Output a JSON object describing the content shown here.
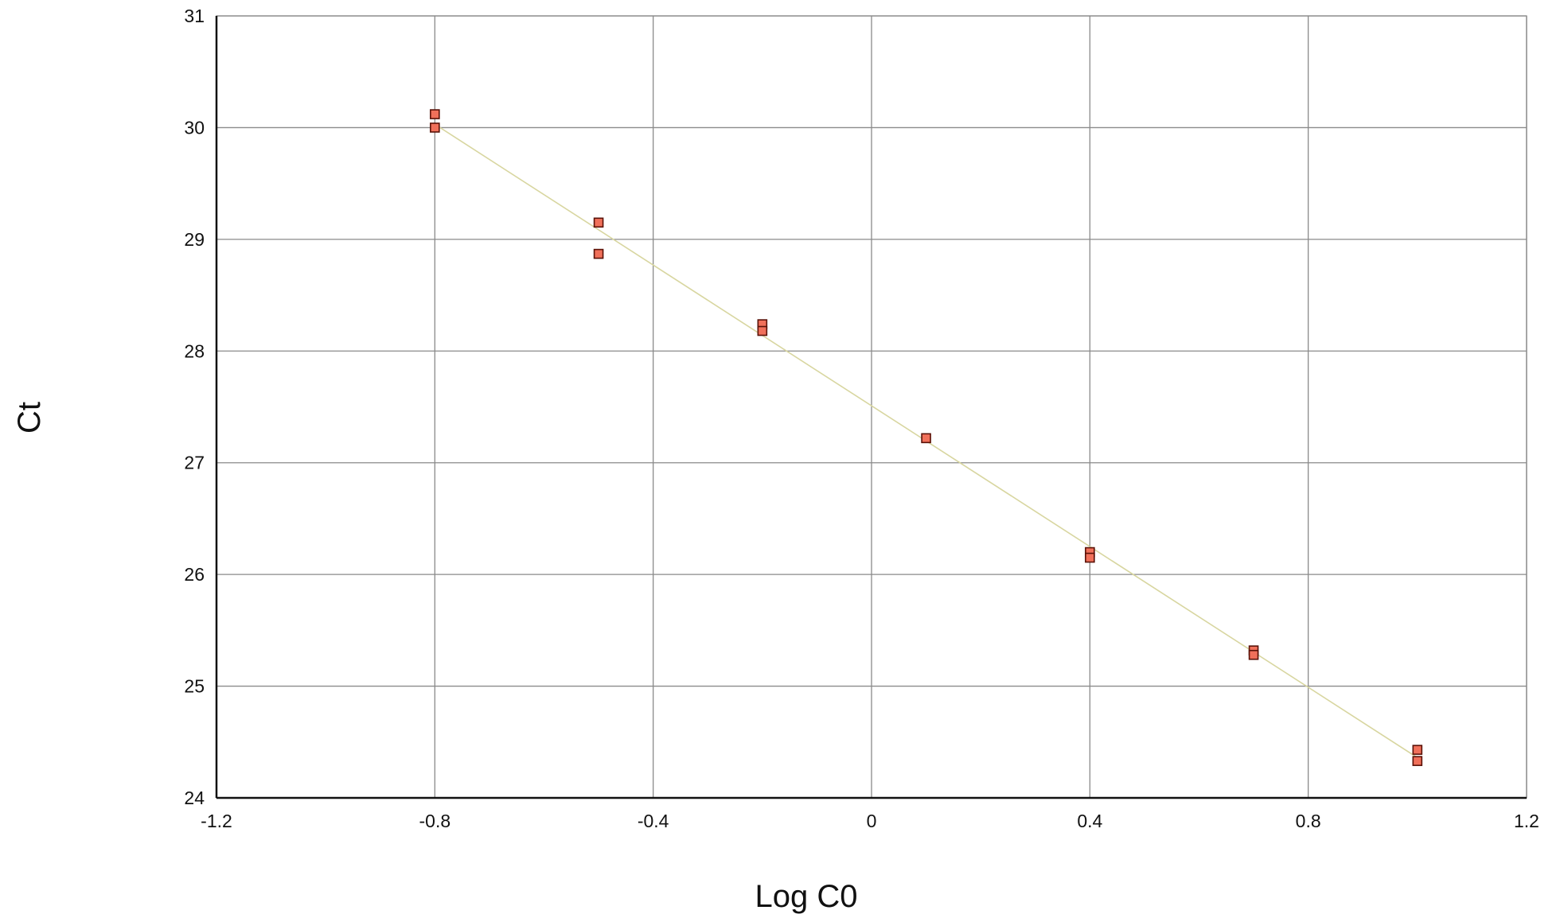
{
  "chart_data": {
    "type": "scatter",
    "title": "",
    "xlabel": "Log C0",
    "ylabel": "Ct",
    "xlim": [
      -1.2,
      1.2
    ],
    "ylim": [
      24,
      31
    ],
    "x_ticks": [
      -1.2,
      -0.8,
      -0.4,
      0,
      0.4,
      0.8,
      1.2
    ],
    "x_tick_labels": [
      "-1.2",
      "-0.8",
      "-0.4",
      "0",
      "0.4",
      "0.8",
      "1.2"
    ],
    "y_ticks": [
      24,
      25,
      26,
      27,
      28,
      29,
      30,
      31
    ],
    "y_tick_labels": [
      "24",
      "25",
      "26",
      "27",
      "28",
      "29",
      "30",
      "31"
    ],
    "grid": true,
    "legend": "none",
    "points": [
      {
        "x": -0.8,
        "y": 30.12
      },
      {
        "x": -0.8,
        "y": 30.0
      },
      {
        "x": -0.5,
        "y": 29.15
      },
      {
        "x": -0.5,
        "y": 28.87
      },
      {
        "x": -0.2,
        "y": 28.24
      },
      {
        "x": -0.2,
        "y": 28.18
      },
      {
        "x": 0.1,
        "y": 27.22
      },
      {
        "x": 0.4,
        "y": 26.2
      },
      {
        "x": 0.4,
        "y": 26.15
      },
      {
        "x": 0.7,
        "y": 25.32
      },
      {
        "x": 0.7,
        "y": 25.28
      },
      {
        "x": 1.0,
        "y": 24.43
      },
      {
        "x": 1.0,
        "y": 24.33
      }
    ],
    "trendline": {
      "x": [
        -0.8,
        1.0
      ],
      "y": [
        30.03,
        24.36
      ]
    },
    "colors": {
      "marker_fill": "#f0705a",
      "marker_stroke": "#5a1208",
      "trendline": "#d8d6a0",
      "grid": "#8a8a8a",
      "axis": "#111111"
    }
  }
}
